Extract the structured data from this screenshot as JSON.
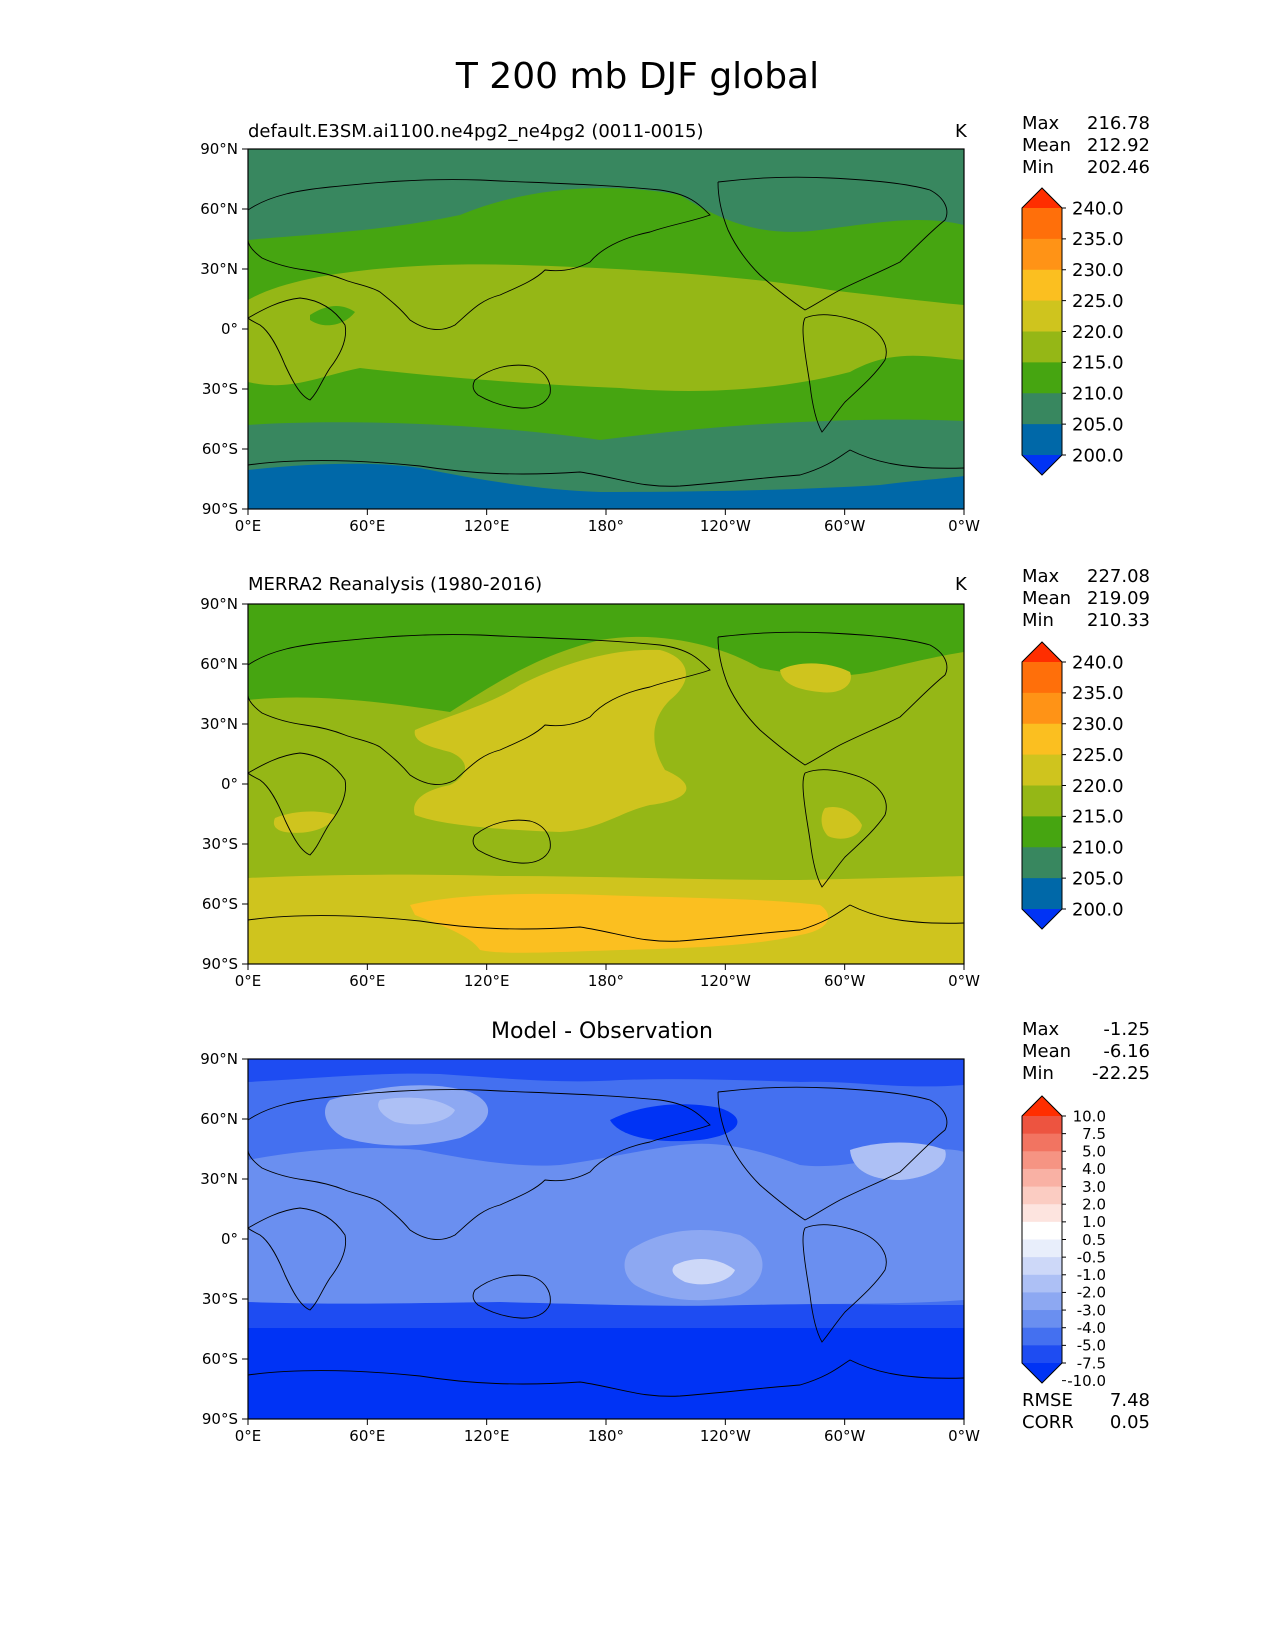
{
  "title": "T 200 mb DJF global",
  "colors": {
    "abs": [
      "#0033f5",
      "#0068a8",
      "#38875f",
      "#46a511",
      "#95b716",
      "#cfc41e",
      "#fbbf20",
      "#ff9316",
      "#ff6f0a",
      "#ff2e00"
    ],
    "diff": [
      "#0033f5",
      "#1e4cf2",
      "#4470f0",
      "#6a8ff0",
      "#8da8f2",
      "#adc0f5",
      "#cdd8f8",
      "#e8eefb",
      "#ffffff",
      "#fde4df",
      "#fbccc2",
      "#f9b1a4",
      "#f69483",
      "#f27461",
      "#ed5440",
      "#ff2e00"
    ]
  },
  "panels": [
    {
      "name": "test",
      "title": "default.E3SM.ai1100.ne4pg2_ne4pg2 (0011-0015)",
      "units": "K",
      "stats": {
        "max_label": "Max",
        "max": "216.78",
        "mean_label": "Mean",
        "mean": "212.92",
        "min_label": "Min",
        "min": "202.46"
      }
    },
    {
      "name": "reference",
      "title": "MERRA2 Reanalysis (1980-2016)",
      "units": "K",
      "stats": {
        "max_label": "Max",
        "max": "227.08",
        "mean_label": "Mean",
        "mean": "219.09",
        "min_label": "Min",
        "min": "210.33"
      }
    },
    {
      "name": "diff",
      "title": "Model - Observation",
      "units": "",
      "stats": {
        "max_label": "Max",
        "max": "-1.25",
        "mean_label": "Mean",
        "mean": "-6.16",
        "min_label": "Min",
        "min": "-22.25"
      },
      "extra": {
        "rmse_label": "RMSE",
        "rmse": "7.48",
        "corr_label": "CORR",
        "corr": "0.05"
      }
    }
  ],
  "chart_data": [
    {
      "type": "heatmap",
      "title": "default.E3SM.ai1100.ne4pg2_ne4pg2 (0011-0015)",
      "units": "K",
      "x_ticks": [
        "0°E",
        "60°E",
        "120°E",
        "180°",
        "120°W",
        "60°W",
        "0°W"
      ],
      "y_ticks": [
        "90°N",
        "60°N",
        "30°N",
        "0°",
        "30°S",
        "60°S",
        "90°S"
      ],
      "xlim": [
        0,
        360
      ],
      "ylim": [
        -90,
        90
      ],
      "colorbar_levels": [
        "240.0",
        "235.0",
        "230.0",
        "225.0",
        "220.0",
        "215.0",
        "210.0",
        "205.0",
        "200.0"
      ],
      "zonal_bands_K": [
        {
          "lat_range": [
            60,
            90
          ],
          "value": 210
        },
        {
          "lat_range": [
            35,
            60
          ],
          "value": 215
        },
        {
          "lat_range": [
            -25,
            35
          ],
          "value": 220
        },
        {
          "lat_range": [
            -48,
            -25
          ],
          "value": 215
        },
        {
          "lat_range": [
            -72,
            -48
          ],
          "value": 210
        },
        {
          "lat_range": [
            -90,
            -72
          ],
          "value": 205
        }
      ]
    },
    {
      "type": "heatmap",
      "title": "MERRA2 Reanalysis (1980-2016)",
      "units": "K",
      "x_ticks": [
        "0°E",
        "60°E",
        "120°E",
        "180°",
        "120°W",
        "60°W",
        "0°W"
      ],
      "y_ticks": [
        "90°N",
        "60°N",
        "30°N",
        "0°",
        "30°S",
        "60°S",
        "90°S"
      ],
      "xlim": [
        0,
        360
      ],
      "ylim": [
        -90,
        90
      ],
      "colorbar_levels": [
        "240.0",
        "235.0",
        "230.0",
        "225.0",
        "220.0",
        "215.0",
        "210.0",
        "205.0",
        "200.0"
      ],
      "zonal_bands_K": [
        {
          "lat_range": [
            45,
            90
          ],
          "value": 215
        },
        {
          "lat_range": [
            -47,
            45
          ],
          "value": 220
        },
        {
          "lat_range": [
            -90,
            -47
          ],
          "value": 225
        }
      ],
      "regions_K": [
        {
          "region": "western Pacific",
          "value": 225
        },
        {
          "region": "Southern Ocean (100°E-70°W)",
          "value": 230
        }
      ]
    },
    {
      "type": "heatmap",
      "title": "Model - Observation",
      "x_ticks": [
        "0°E",
        "60°E",
        "120°E",
        "180°",
        "120°W",
        "60°W",
        "0°W"
      ],
      "y_ticks": [
        "90°N",
        "60°N",
        "30°N",
        "0°",
        "30°S",
        "60°S",
        "90°S"
      ],
      "xlim": [
        0,
        360
      ],
      "ylim": [
        -90,
        90
      ],
      "colorbar_levels": [
        "10.0",
        "7.5",
        "5.0",
        "4.0",
        "3.0",
        "2.0",
        "1.0",
        "0.5",
        "-0.5",
        "-1.0",
        "-2.0",
        "-3.0",
        "-4.0",
        "-5.0",
        "-7.5",
        "-10.0"
      ],
      "zonal_bands_K": [
        {
          "lat_range": [
            60,
            90
          ],
          "value": -7.5
        },
        {
          "lat_range": [
            35,
            60
          ],
          "value": -5.0
        },
        {
          "lat_range": [
            -35,
            35
          ],
          "value": -4.0
        },
        {
          "lat_range": [
            -47,
            -35
          ],
          "value": -7.5
        },
        {
          "lat_range": [
            -90,
            -47
          ],
          "value": -10.0
        }
      ],
      "regions_K": [
        {
          "region": "Siberia",
          "value": -2.0
        },
        {
          "region": "central Pacific",
          "value": -1.0
        },
        {
          "region": "North Pacific",
          "value": -10.0
        }
      ]
    }
  ]
}
